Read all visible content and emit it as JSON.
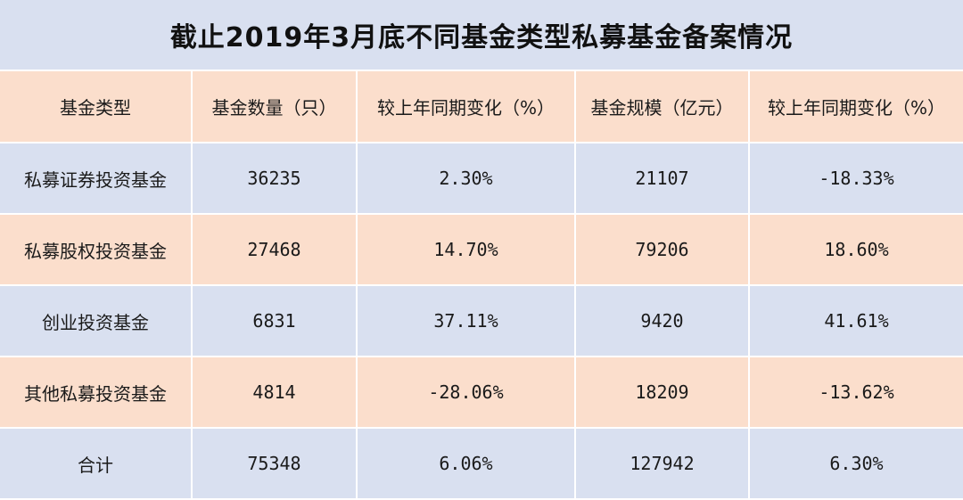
{
  "title": "截止2019年3月底不同基金类型私募基金备案情况",
  "headers": [
    "基金类型",
    "基金数量（只）",
    "较上年同期变化（%）",
    "基金规模（亿元）",
    "较上年同期变化（%）"
  ],
  "rows": [
    [
      "私募证券投资基金",
      "36235",
      "2.30%",
      "21107",
      "-18.33%"
    ],
    [
      "私募股权投资基金",
      "27468",
      "14.70%",
      "79206",
      "18.60%"
    ],
    [
      "创业投资基金",
      "6831",
      "37.11%",
      "9420",
      "41.61%"
    ],
    [
      "其他私募投资基金",
      "4814",
      "-28.06%",
      "18209",
      "-13.62%"
    ],
    [
      "合计",
      "75348",
      "6.06%",
      "127942",
      "6.30%"
    ]
  ],
  "colors": {
    "blue_band": "#d9e0f0",
    "peach_band": "#fbdecc"
  }
}
